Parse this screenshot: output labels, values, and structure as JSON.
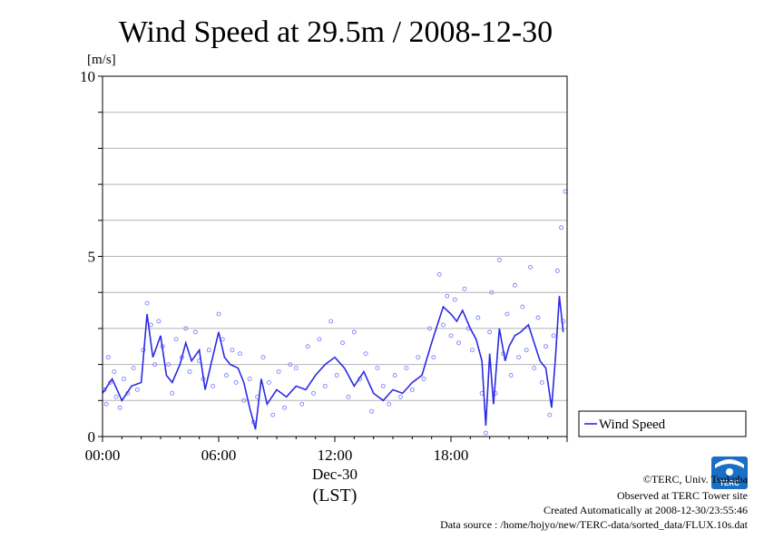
{
  "chart_data": {
    "type": "scatter",
    "title": "Wind Speed at 29.5m / 2008-12-30",
    "ylabel": "[m/s]",
    "xlabel_date": "Dec-30",
    "xlabel": "(LST)",
    "x_unit": "hours (LST)",
    "ylim": [
      0,
      10
    ],
    "xlim": [
      0,
      24
    ],
    "yticks": [
      "0",
      "5",
      "10"
    ],
    "xticks": [
      "00:00",
      "06:00",
      "12:00",
      "18:00"
    ],
    "grid": true,
    "legend_position": "right",
    "series": [
      {
        "name": "Wind Speed",
        "color": "#2a2ae6",
        "point_color": "#8080ff",
        "mean": {
          "x": [
            0,
            0.5,
            1,
            1.5,
            2,
            2.3,
            2.6,
            3,
            3.3,
            3.6,
            4,
            4.3,
            4.6,
            5,
            5.3,
            5.6,
            6,
            6.3,
            6.6,
            7,
            7.3,
            7.6,
            7.9,
            8.2,
            8.5,
            9,
            9.5,
            10,
            10.5,
            11,
            11.5,
            12,
            12.5,
            13,
            13.5,
            14,
            14.5,
            15,
            15.5,
            16,
            16.5,
            17,
            17.3,
            17.6,
            18,
            18.3,
            18.6,
            19,
            19.3,
            19.6,
            19.8,
            20,
            20.2,
            20.5,
            20.8,
            21,
            21.3,
            21.6,
            22,
            22.3,
            22.6,
            22.9,
            23.2,
            23.4,
            23.6,
            23.8
          ],
          "y": [
            1.2,
            1.6,
            1.0,
            1.4,
            1.5,
            3.4,
            2.2,
            2.8,
            1.7,
            1.5,
            2.0,
            2.6,
            2.1,
            2.4,
            1.3,
            2.0,
            2.9,
            2.2,
            2.0,
            1.9,
            1.5,
            0.8,
            0.2,
            1.6,
            0.9,
            1.3,
            1.1,
            1.4,
            1.3,
            1.7,
            2.0,
            2.2,
            1.9,
            1.4,
            1.8,
            1.2,
            1.0,
            1.3,
            1.2,
            1.5,
            1.7,
            2.6,
            3.1,
            3.6,
            3.4,
            3.2,
            3.5,
            3.0,
            2.7,
            2.1,
            0.3,
            2.3,
            0.9,
            3.0,
            2.1,
            2.5,
            2.8,
            2.9,
            3.1,
            2.6,
            2.1,
            1.9,
            0.8,
            2.2,
            3.9,
            2.9
          ]
        },
        "scatter": [
          [
            0.1,
            1.3
          ],
          [
            0.2,
            0.9
          ],
          [
            0.3,
            2.2
          ],
          [
            0.4,
            1.5
          ],
          [
            0.6,
            1.8
          ],
          [
            0.7,
            1.1
          ],
          [
            0.9,
            0.8
          ],
          [
            1.1,
            1.6
          ],
          [
            1.3,
            1.2
          ],
          [
            1.6,
            1.9
          ],
          [
            1.8,
            1.3
          ],
          [
            2.1,
            2.4
          ],
          [
            2.3,
            3.7
          ],
          [
            2.5,
            3.1
          ],
          [
            2.7,
            2.0
          ],
          [
            2.9,
            3.2
          ],
          [
            3.1,
            2.5
          ],
          [
            3.4,
            2.0
          ],
          [
            3.6,
            1.2
          ],
          [
            3.8,
            2.7
          ],
          [
            4.1,
            2.2
          ],
          [
            4.3,
            3.0
          ],
          [
            4.5,
            1.8
          ],
          [
            4.8,
            2.9
          ],
          [
            5.0,
            2.1
          ],
          [
            5.2,
            1.6
          ],
          [
            5.5,
            2.4
          ],
          [
            5.7,
            1.4
          ],
          [
            6.0,
            3.4
          ],
          [
            6.2,
            2.7
          ],
          [
            6.4,
            1.7
          ],
          [
            6.7,
            2.4
          ],
          [
            6.9,
            1.5
          ],
          [
            7.1,
            2.3
          ],
          [
            7.3,
            1.0
          ],
          [
            7.6,
            1.6
          ],
          [
            7.8,
            0.4
          ],
          [
            8.0,
            1.1
          ],
          [
            8.3,
            2.2
          ],
          [
            8.6,
            1.5
          ],
          [
            8.8,
            0.6
          ],
          [
            9.1,
            1.8
          ],
          [
            9.4,
            0.8
          ],
          [
            9.7,
            2.0
          ],
          [
            10.0,
            1.9
          ],
          [
            10.3,
            0.9
          ],
          [
            10.6,
            2.5
          ],
          [
            10.9,
            1.2
          ],
          [
            11.2,
            2.7
          ],
          [
            11.5,
            1.4
          ],
          [
            11.8,
            3.2
          ],
          [
            12.1,
            1.7
          ],
          [
            12.4,
            2.6
          ],
          [
            12.7,
            1.1
          ],
          [
            13.0,
            2.9
          ],
          [
            13.3,
            1.6
          ],
          [
            13.6,
            2.3
          ],
          [
            13.9,
            0.7
          ],
          [
            14.2,
            1.9
          ],
          [
            14.5,
            1.4
          ],
          [
            14.8,
            0.9
          ],
          [
            15.1,
            1.7
          ],
          [
            15.4,
            1.1
          ],
          [
            15.7,
            1.9
          ],
          [
            16.0,
            1.3
          ],
          [
            16.3,
            2.2
          ],
          [
            16.6,
            1.6
          ],
          [
            16.9,
            3.0
          ],
          [
            17.1,
            2.2
          ],
          [
            17.4,
            4.5
          ],
          [
            17.6,
            3.1
          ],
          [
            17.8,
            3.9
          ],
          [
            18.0,
            2.8
          ],
          [
            18.2,
            3.8
          ],
          [
            18.4,
            2.6
          ],
          [
            18.7,
            4.1
          ],
          [
            18.9,
            3.0
          ],
          [
            19.1,
            2.4
          ],
          [
            19.4,
            3.3
          ],
          [
            19.6,
            1.2
          ],
          [
            19.8,
            0.1
          ],
          [
            20.0,
            2.9
          ],
          [
            20.1,
            4.0
          ],
          [
            20.3,
            1.2
          ],
          [
            20.5,
            4.9
          ],
          [
            20.7,
            2.3
          ],
          [
            20.9,
            3.4
          ],
          [
            21.1,
            1.7
          ],
          [
            21.3,
            4.2
          ],
          [
            21.5,
            2.2
          ],
          [
            21.7,
            3.6
          ],
          [
            21.9,
            2.4
          ],
          [
            22.1,
            4.7
          ],
          [
            22.3,
            1.9
          ],
          [
            22.5,
            3.3
          ],
          [
            22.7,
            1.5
          ],
          [
            22.9,
            2.5
          ],
          [
            23.1,
            0.6
          ],
          [
            23.3,
            2.8
          ],
          [
            23.5,
            4.6
          ],
          [
            23.7,
            5.8
          ],
          [
            23.8,
            3.2
          ],
          [
            23.9,
            6.8
          ]
        ]
      }
    ]
  },
  "credits": {
    "copyright": "©TERC, Univ. Tsukuba",
    "observed": "Observed at TERC Tower site",
    "created": "Created Automatically at 2008-12-30/23:55:46",
    "source": "Data source : /home/hojyo/new/TERC-data/sorted_data/FLUX.10s.dat"
  },
  "logo": {
    "text": "TERC",
    "icon": "terc-logo-icon",
    "color": "#1a6fc4"
  }
}
